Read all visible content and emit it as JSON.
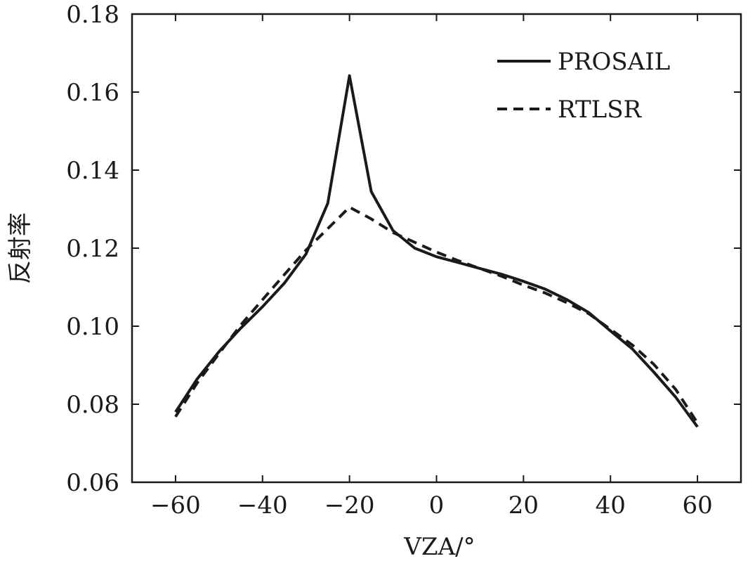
{
  "chart_data": {
    "type": "line",
    "xlabel": "VZA/°",
    "ylabel": "反射率",
    "xlim": [
      -70,
      70
    ],
    "ylim": [
      0.06,
      0.18
    ],
    "xticks": [
      -60,
      -40,
      -20,
      0,
      20,
      40,
      60
    ],
    "xtick_labels": [
      "−60",
      "−40",
      "−20",
      "0",
      "20",
      "40",
      "60"
    ],
    "yticks": [
      0.06,
      0.08,
      0.1,
      0.12,
      0.14,
      0.16,
      0.18
    ],
    "ytick_labels": [
      "0.06",
      "0.08",
      "0.10",
      "0.12",
      "0.14",
      "0.16",
      "0.18"
    ],
    "grid": false,
    "legend_position": "top-right",
    "colors": {
      "line": "#1a1a1a",
      "axis": "#1a1a1a",
      "background": "#ffffff"
    },
    "series": [
      {
        "name": "PROSAIL",
        "style": "solid",
        "x": [
          -60,
          -55,
          -50,
          -45,
          -40,
          -35,
          -30,
          -25,
          -20,
          -15,
          -10,
          -5,
          0,
          5,
          10,
          15,
          20,
          25,
          30,
          35,
          40,
          45,
          50,
          55,
          60
        ],
        "y": [
          0.078,
          0.0865,
          0.0935,
          0.0995,
          0.105,
          0.111,
          0.1185,
          0.1315,
          0.1642,
          0.1345,
          0.1245,
          0.12,
          0.1178,
          0.1163,
          0.1148,
          0.1133,
          0.1115,
          0.1095,
          0.1068,
          0.1035,
          0.0988,
          0.0942,
          0.0882,
          0.0818,
          0.0742
        ]
      },
      {
        "name": "RTLSR",
        "style": "dashed",
        "x": [
          -60,
          -55,
          -50,
          -45,
          -40,
          -35,
          -30,
          -25,
          -20,
          -15,
          -10,
          -5,
          0,
          5,
          10,
          15,
          20,
          25,
          30,
          35,
          40,
          45,
          50,
          55,
          60
        ],
        "y": [
          0.0768,
          0.0855,
          0.093,
          0.1003,
          0.1068,
          0.1132,
          0.1195,
          0.125,
          0.1305,
          0.1275,
          0.124,
          0.1215,
          0.119,
          0.1168,
          0.1148,
          0.1128,
          0.1105,
          0.1085,
          0.106,
          0.1032,
          0.0992,
          0.0952,
          0.0902,
          0.0838,
          0.0752
        ]
      }
    ]
  }
}
